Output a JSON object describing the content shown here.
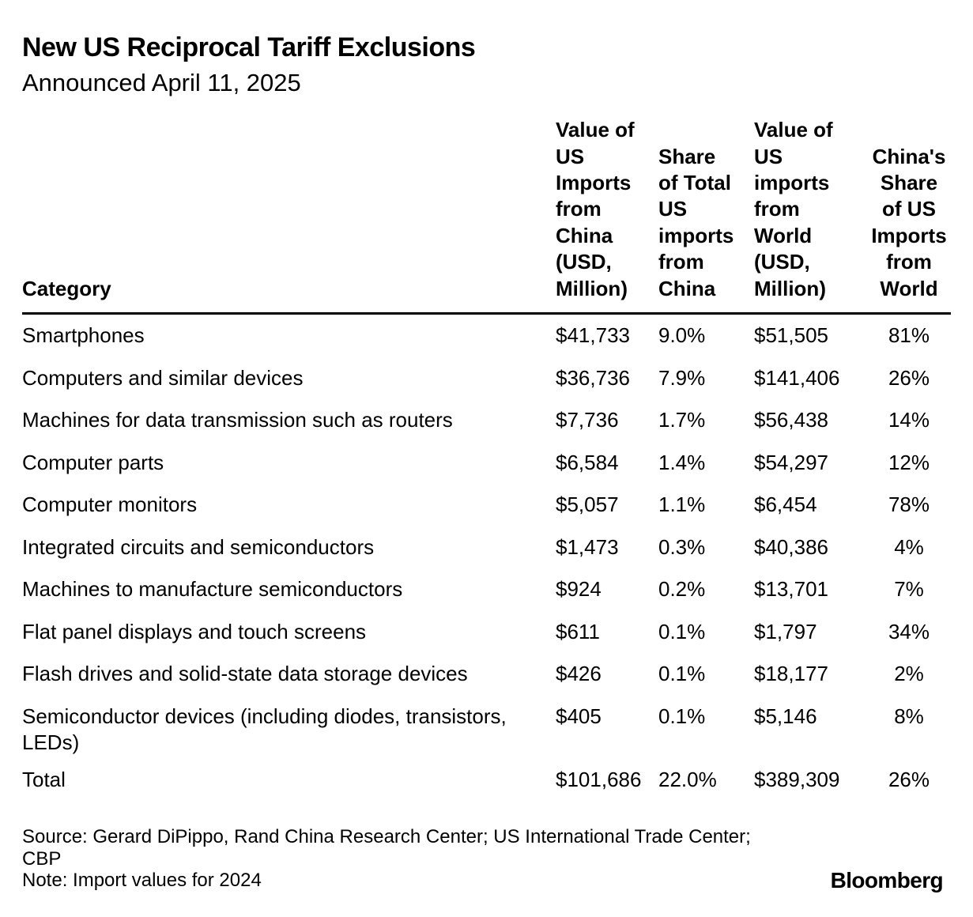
{
  "chart_data": {
    "type": "table",
    "title": "New US Reciprocal Tariff Exclusions",
    "subtitle": "Announced April 11, 2025",
    "columns": [
      "Category",
      "Value of\nUS\nImports\nfrom\nChina\n(USD,\nMillion)",
      "Share\nof Total\nUS\nimports\nfrom\nChina",
      "Value of\nUS\nimports\nfrom\nWorld\n(USD,\nMillion)",
      "China's\nShare\nof US\nImports\nfrom\nWorld"
    ],
    "rows": [
      [
        "Smartphones",
        "$41,733",
        "9.0%",
        "$51,505",
        "81%"
      ],
      [
        "Computers and similar devices",
        "$36,736",
        "7.9%",
        "$141,406",
        "26%"
      ],
      [
        "Machines for data transmission such as routers",
        "$7,736",
        "1.7%",
        "$56,438",
        "14%"
      ],
      [
        "Computer parts",
        "$6,584",
        "1.4%",
        "$54,297",
        "12%"
      ],
      [
        "Computer monitors",
        "$5,057",
        "1.1%",
        "$6,454",
        "78%"
      ],
      [
        "Integrated circuits and semiconductors",
        "$1,473",
        "0.3%",
        "$40,386",
        "4%"
      ],
      [
        "Machines to manufacture semiconductors",
        "$924",
        "0.2%",
        "$13,701",
        "7%"
      ],
      [
        "Flat panel displays and touch screens",
        "$611",
        "0.1%",
        "$1,797",
        "34%"
      ],
      [
        "Flash drives and solid-state data storage devices",
        "$426",
        "0.1%",
        "$18,177",
        "2%"
      ],
      [
        "Semiconductor devices (including diodes, transistors, LEDs)",
        "$405",
        "0.1%",
        "$5,146",
        "8%"
      ],
      [
        "Total",
        "$101,686",
        "22.0%",
        "$389,309",
        "26%"
      ]
    ]
  },
  "footer": {
    "source": "Source: Gerard DiPippo, Rand China Research Center; US International Trade Center; CBP",
    "note": "Note: Import values for 2024"
  },
  "brand": "Bloomberg"
}
